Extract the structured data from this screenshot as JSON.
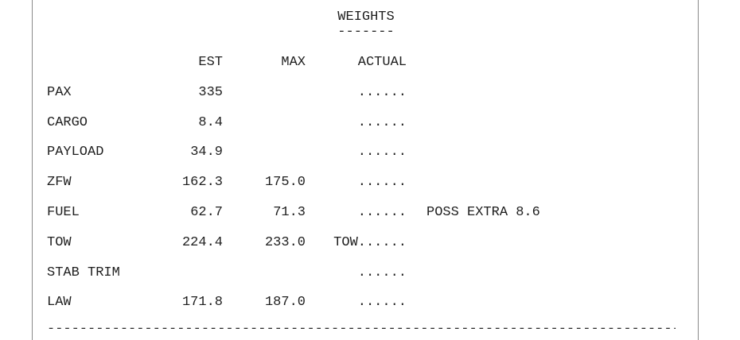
{
  "rule_line": "--------------------------------------------------------------------------------------------------------",
  "weights": {
    "title": "WEIGHTS",
    "title_underline": "-------",
    "columns": {
      "est": "EST",
      "max": "MAX",
      "actual": "ACTUAL"
    },
    "rows": [
      {
        "label": "PAX",
        "est": "335",
        "max": "",
        "actual": "......",
        "note": ""
      },
      {
        "label": "CARGO",
        "est": "8.4",
        "max": "",
        "actual": "......",
        "note": ""
      },
      {
        "label": "PAYLOAD",
        "est": "34.9",
        "max": "",
        "actual": "......",
        "note": ""
      },
      {
        "label": "ZFW",
        "est": "162.3",
        "max": "175.0",
        "actual": "......",
        "note": ""
      },
      {
        "label": "FUEL",
        "est": "62.7",
        "max": "71.3",
        "actual": "......",
        "note": "POSS EXTRA 8.6"
      },
      {
        "label": "TOW",
        "est": "224.4",
        "max": "233.0",
        "actual": "TOW......",
        "note": ""
      },
      {
        "label": "STAB TRIM",
        "est": "",
        "max": "",
        "actual": "......",
        "note": ""
      },
      {
        "label": "LAW",
        "est": "171.8",
        "max": "187.0",
        "actual": "......",
        "note": ""
      }
    ]
  }
}
